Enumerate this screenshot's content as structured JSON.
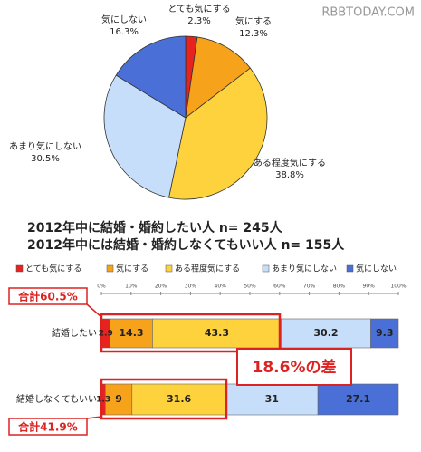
{
  "watermark": "RBBTODAY.COM",
  "chart_data": [
    {
      "type": "pie",
      "categories": [
        "とても気にする",
        "気にする",
        "ある程度気にする",
        "あまり気にしない",
        "気にしない"
      ],
      "values": [
        2.3,
        12.3,
        38.8,
        30.5,
        16.3
      ],
      "value_labels": [
        "2.3%",
        "12.3%",
        "38.8%",
        "30.5%",
        "16.3%"
      ],
      "colors": [
        "#e8231f",
        "#f7a21b",
        "#fdd23c",
        "#c6defa",
        "#4a6fd6"
      ]
    },
    {
      "type": "stacked-bar-horizontal",
      "title": "2012年中に結婚・婚約したい人  n= 245人",
      "subtitle": "2012年中には結婚・婚約しなくてもいい人  n= 155人",
      "categories": [
        "結婚したい",
        "結婚しなくてもいい"
      ],
      "series": [
        {
          "name": "とても気にする",
          "color": "#e8231f",
          "values": [
            2.9,
            1.3
          ]
        },
        {
          "name": "気にする",
          "color": "#f7a21b",
          "values": [
            14.3,
            9.0
          ]
        },
        {
          "name": "ある程度気にする",
          "color": "#fdd23c",
          "values": [
            43.3,
            31.6
          ]
        },
        {
          "name": "あまり気にしない",
          "color": "#c6defa",
          "values": [
            30.2,
            31.0
          ]
        },
        {
          "name": "気にしない",
          "color": "#4a6fd6",
          "values": [
            9.3,
            27.1
          ]
        }
      ],
      "xlim": [
        0,
        100
      ],
      "xticks": [
        {
          "value": 0,
          "label": "0%"
        },
        {
          "value": 10,
          "label": "10%"
        },
        {
          "value": 20,
          "label": "20%"
        },
        {
          "value": 30,
          "label": "30%"
        },
        {
          "value": 40,
          "label": "40%"
        },
        {
          "value": 50,
          "label": "50%"
        },
        {
          "value": 60,
          "label": "60%"
        },
        {
          "value": 70,
          "label": "70%"
        },
        {
          "value": 80,
          "label": "80%"
        },
        {
          "value": 90,
          "label": "90%"
        },
        {
          "value": 100,
          "label": "100%"
        }
      ],
      "annotations": [
        "合計60.5%",
        "18.6%の差",
        "合計41.9%"
      ]
    }
  ]
}
